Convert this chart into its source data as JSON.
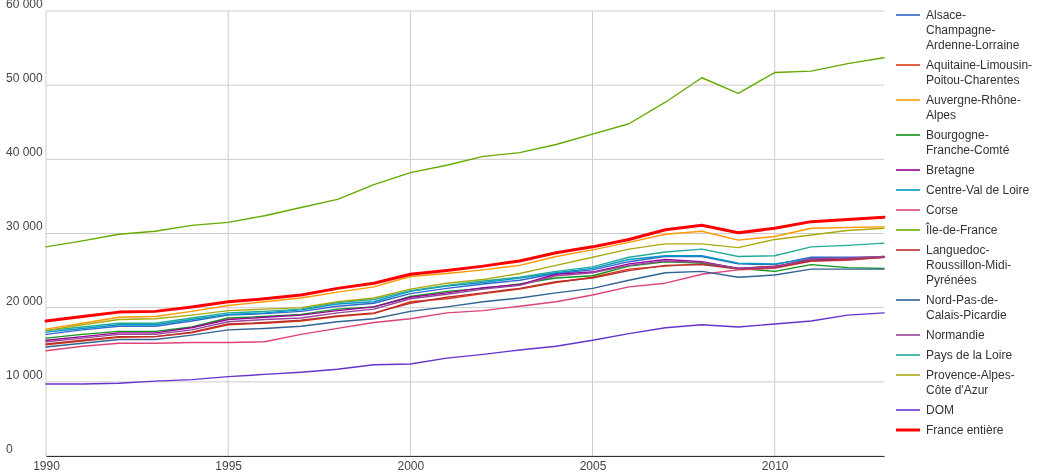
{
  "chart_data": {
    "type": "line",
    "x": [
      1990,
      1991,
      1992,
      1993,
      1994,
      1995,
      1996,
      1997,
      1998,
      1999,
      2000,
      2001,
      2002,
      2003,
      2004,
      2005,
      2006,
      2007,
      2008,
      2009,
      2010,
      2011,
      2012,
      2013
    ],
    "xlim": [
      1990,
      2013
    ],
    "xticks": [
      1990,
      1995,
      2000,
      2005,
      2010
    ],
    "ylim": [
      0,
      60000
    ],
    "yticks": [
      {
        "value": 0,
        "label": "0"
      },
      {
        "value": 10000,
        "label": "10 000"
      },
      {
        "value": 20000,
        "label": "20 000"
      },
      {
        "value": 30000,
        "label": "30 000"
      },
      {
        "value": 40000,
        "label": "40 000"
      },
      {
        "value": 50000,
        "label": "50 000"
      },
      {
        "value": 60000,
        "label": "60 000"
      }
    ],
    "grid": true,
    "legend": "right",
    "line_style": "solid",
    "marker": "none",
    "series": [
      {
        "name": "Alsace-Champagne-Ardenne-Lorraine",
        "color": "#3366cc",
        "values": [
          16400,
          17000,
          17500,
          17500,
          18200,
          19000,
          19200,
          19500,
          20200,
          20600,
          21900,
          22600,
          23200,
          23700,
          24600,
          25100,
          26200,
          26900,
          26900,
          25900,
          25800,
          26800,
          26800,
          26800
        ]
      },
      {
        "name": "Aquitaine-Limousin-Poitou-Charentes",
        "color": "#dc3912",
        "values": [
          15000,
          15500,
          16000,
          16100,
          16600,
          17700,
          17900,
          18200,
          18800,
          19200,
          20800,
          21200,
          21900,
          22500,
          23400,
          24100,
          25200,
          25600,
          25900,
          25300,
          25600,
          26400,
          26600,
          26900
        ]
      },
      {
        "name": "Auvergne-Rhône-Alpes",
        "color": "#ff9900",
        "values": [
          17100,
          17900,
          18700,
          18800,
          19500,
          20300,
          20800,
          21300,
          22100,
          22800,
          24200,
          24600,
          25100,
          25700,
          26900,
          27800,
          28800,
          29900,
          30300,
          29100,
          29600,
          30700,
          30800,
          30900
        ]
      },
      {
        "name": "Bourgogne-Franche-Comté",
        "color": "#109618",
        "values": [
          15900,
          16400,
          16800,
          16800,
          17400,
          18600,
          18800,
          19100,
          19800,
          20100,
          21500,
          22200,
          22600,
          23200,
          24000,
          24300,
          25600,
          26200,
          26000,
          25300,
          24900,
          25800,
          25400,
          25300
        ]
      },
      {
        "name": "Bretagne",
        "color": "#990099",
        "values": [
          15600,
          16100,
          16600,
          16600,
          17300,
          18400,
          18700,
          19000,
          19600,
          20100,
          21400,
          22000,
          22700,
          23100,
          24500,
          24800,
          25900,
          26500,
          26200,
          25300,
          25500,
          26500,
          26600,
          26800
        ]
      },
      {
        "name": "Centre-Val de Loire",
        "color": "#0099c6",
        "values": [
          16700,
          17200,
          17700,
          17700,
          18400,
          19100,
          19300,
          19700,
          20500,
          20800,
          22200,
          22900,
          23400,
          24000,
          24700,
          25300,
          26500,
          27000,
          27000,
          26000,
          25900,
          26600,
          26700,
          26800
        ]
      },
      {
        "name": "Corse",
        "color": "#dd4477",
        "values": [
          14200,
          14800,
          15200,
          15200,
          15300,
          15300,
          15400,
          16400,
          17200,
          18000,
          18500,
          19300,
          19600,
          20200,
          20800,
          21700,
          22800,
          23300,
          24500,
          25100,
          25300,
          26300,
          26400,
          26800
        ]
      },
      {
        "name": "Île-de-France",
        "color": "#66aa00",
        "values": [
          28200,
          29000,
          29900,
          30300,
          31100,
          31500,
          32400,
          33500,
          34600,
          36600,
          38200,
          39200,
          40400,
          40900,
          42000,
          43400,
          44800,
          47700,
          51000,
          48900,
          51700,
          51900,
          52900,
          53700
        ]
      },
      {
        "name": "Languedoc-Roussillon-Midi-Pyrénées",
        "color": "#b82e2e",
        "values": [
          15100,
          15600,
          16100,
          16100,
          16700,
          17800,
          18000,
          18300,
          18900,
          19300,
          20600,
          21400,
          22000,
          22600,
          23500,
          24000,
          25000,
          25700,
          25800,
          25200,
          25400,
          26300,
          26500,
          26800
        ]
      },
      {
        "name": "Nord-Pas-de-Calais-Picardie",
        "color": "#316395",
        "values": [
          14700,
          15200,
          15700,
          15700,
          16300,
          17000,
          17200,
          17500,
          18100,
          18500,
          19500,
          20100,
          20800,
          21300,
          22000,
          22600,
          23700,
          24700,
          24900,
          24100,
          24400,
          25200,
          25200,
          25200
        ]
      },
      {
        "name": "Normandie",
        "color": "#994499",
        "values": [
          15400,
          15900,
          16400,
          16400,
          17000,
          18100,
          18400,
          18600,
          19300,
          19800,
          21200,
          21800,
          22500,
          23000,
          24300,
          24700,
          25700,
          26300,
          26100,
          25300,
          25500,
          26600,
          26700,
          26900
        ]
      },
      {
        "name": "Pays de la Loire",
        "color": "#22aa99",
        "values": [
          16900,
          17400,
          17900,
          17900,
          18600,
          19300,
          19500,
          19800,
          20700,
          21100,
          22300,
          23000,
          23600,
          24100,
          24900,
          25500,
          26800,
          27500,
          27900,
          26900,
          27000,
          28200,
          28400,
          28700
        ]
      },
      {
        "name": "Provence-Alpes-Côte d'Azur",
        "color": "#aaaa11",
        "values": [
          16900,
          17700,
          18400,
          18500,
          19000,
          19600,
          19800,
          20000,
          20800,
          21300,
          22500,
          23300,
          23800,
          24600,
          25700,
          26800,
          27900,
          28600,
          28600,
          28100,
          29200,
          29800,
          30400,
          30700
        ]
      },
      {
        "name": "DOM",
        "color": "#6633cc",
        "values": [
          9700,
          9700,
          9800,
          10100,
          10300,
          10700,
          11000,
          11300,
          11700,
          12300,
          12400,
          13200,
          13700,
          14300,
          14800,
          15600,
          16500,
          17300,
          17700,
          17400,
          17800,
          18200,
          19000,
          19300
        ]
      },
      {
        "name": "France entière",
        "color": "#ff0000",
        "values": [
          18200,
          18800,
          19400,
          19500,
          20100,
          20800,
          21200,
          21700,
          22600,
          23300,
          24500,
          25000,
          25600,
          26300,
          27400,
          28200,
          29200,
          30500,
          31100,
          30100,
          30700,
          31600,
          31900,
          32200
        ]
      }
    ]
  }
}
